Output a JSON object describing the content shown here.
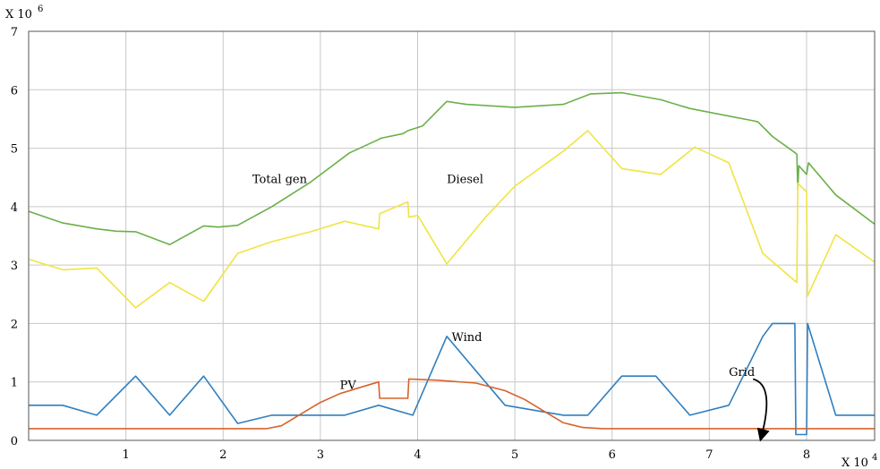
{
  "chart_data": {
    "type": "line",
    "title": "",
    "xlabel": "",
    "ylabel": "",
    "x_multiplier_label": "X 10",
    "x_multiplier_exp": "4",
    "y_multiplier_label": "X 10",
    "y_multiplier_exp": "6",
    "xlim": [
      0,
      8.7
    ],
    "ylim": [
      0,
      7
    ],
    "x_ticks": [
      "1",
      "2",
      "3",
      "4",
      "5",
      "6",
      "7",
      "8"
    ],
    "y_ticks": [
      "0",
      "1",
      "2",
      "3",
      "4",
      "5",
      "6",
      "7"
    ],
    "grid": true,
    "legend": "none",
    "annotations": [
      {
        "text": "Total gen",
        "x": 2.3,
        "y": 4.4
      },
      {
        "text": "Diesel",
        "x": 4.3,
        "y": 4.4
      },
      {
        "text": "Wind",
        "x": 4.35,
        "y": 1.7
      },
      {
        "text": "PV",
        "x": 3.2,
        "y": 0.88
      },
      {
        "text": "Grid",
        "x": 7.2,
        "y": 1.1
      }
    ],
    "series": [
      {
        "color": "#6ab04a",
        "points": [
          [
            0,
            3.92
          ],
          [
            0.35,
            3.72
          ],
          [
            0.7,
            3.62
          ],
          [
            0.9,
            3.58
          ],
          [
            1.1,
            3.57
          ],
          [
            1.45,
            3.35
          ],
          [
            1.8,
            3.67
          ],
          [
            1.95,
            3.65
          ],
          [
            2.15,
            3.68
          ],
          [
            2.5,
            4.0
          ],
          [
            2.9,
            4.42
          ],
          [
            3.3,
            4.92
          ],
          [
            3.6,
            5.15
          ],
          [
            3.62,
            5.17
          ],
          [
            3.85,
            5.25
          ],
          [
            3.9,
            5.3
          ],
          [
            4.05,
            5.38
          ],
          [
            4.3,
            5.8
          ],
          [
            4.5,
            5.75
          ],
          [
            5.0,
            5.7
          ],
          [
            5.5,
            5.75
          ],
          [
            5.78,
            5.93
          ],
          [
            6.1,
            5.95
          ],
          [
            6.5,
            5.83
          ],
          [
            6.8,
            5.68
          ],
          [
            7.2,
            5.55
          ],
          [
            7.45,
            5.47
          ],
          [
            7.5,
            5.45
          ],
          [
            7.65,
            5.2
          ],
          [
            7.9,
            4.9
          ],
          [
            7.91,
            4.3
          ],
          [
            7.92,
            4.7
          ],
          [
            8.0,
            4.55
          ],
          [
            8.02,
            4.75
          ],
          [
            8.3,
            4.2
          ],
          [
            8.7,
            3.7
          ]
        ]
      },
      {
        "color": "#f0e442",
        "points": [
          [
            0,
            3.1
          ],
          [
            0.35,
            2.92
          ],
          [
            0.7,
            2.95
          ],
          [
            1.1,
            2.27
          ],
          [
            1.45,
            2.7
          ],
          [
            1.8,
            2.38
          ],
          [
            2.15,
            3.2
          ],
          [
            2.5,
            3.4
          ],
          [
            2.9,
            3.57
          ],
          [
            3.25,
            3.75
          ],
          [
            3.6,
            3.62
          ],
          [
            3.61,
            3.88
          ],
          [
            3.9,
            4.08
          ],
          [
            3.91,
            3.82
          ],
          [
            4.0,
            3.85
          ],
          [
            4.3,
            3.02
          ],
          [
            4.7,
            3.82
          ],
          [
            5.0,
            4.35
          ],
          [
            5.5,
            4.95
          ],
          [
            5.75,
            5.3
          ],
          [
            6.1,
            4.65
          ],
          [
            6.5,
            4.55
          ],
          [
            6.85,
            5.02
          ],
          [
            7.2,
            4.75
          ],
          [
            7.55,
            3.2
          ],
          [
            7.9,
            2.7
          ],
          [
            7.91,
            4.4
          ],
          [
            8.0,
            4.25
          ],
          [
            8.01,
            2.47
          ],
          [
            8.3,
            3.52
          ],
          [
            8.7,
            3.05
          ]
        ]
      },
      {
        "color": "#2f7fc1",
        "points": [
          [
            0,
            0.6
          ],
          [
            0.35,
            0.6
          ],
          [
            0.7,
            0.43
          ],
          [
            1.1,
            1.1
          ],
          [
            1.45,
            0.43
          ],
          [
            1.8,
            1.1
          ],
          [
            2.15,
            0.29
          ],
          [
            2.5,
            0.43
          ],
          [
            3.25,
            0.43
          ],
          [
            3.6,
            0.6
          ],
          [
            3.95,
            0.43
          ],
          [
            4.3,
            1.78
          ],
          [
            4.9,
            0.6
          ],
          [
            5.5,
            0.43
          ],
          [
            5.75,
            0.43
          ],
          [
            6.1,
            1.1
          ],
          [
            6.45,
            1.1
          ],
          [
            6.8,
            0.43
          ],
          [
            7.2,
            0.6
          ],
          [
            7.55,
            1.78
          ],
          [
            7.65,
            2.0
          ],
          [
            7.88,
            2.0
          ],
          [
            7.89,
            0.1
          ],
          [
            8.0,
            0.1
          ],
          [
            8.01,
            2.0
          ],
          [
            8.3,
            0.43
          ],
          [
            8.7,
            0.43
          ]
        ]
      },
      {
        "color": "#d8622a",
        "points": [
          [
            0,
            0.2
          ],
          [
            2.45,
            0.2
          ],
          [
            2.6,
            0.25
          ],
          [
            2.8,
            0.45
          ],
          [
            3.0,
            0.65
          ],
          [
            3.2,
            0.8
          ],
          [
            3.4,
            0.9
          ],
          [
            3.6,
            1.0
          ],
          [
            3.61,
            0.72
          ],
          [
            3.9,
            0.72
          ],
          [
            3.91,
            1.05
          ],
          [
            4.2,
            1.03
          ],
          [
            4.6,
            0.98
          ],
          [
            4.9,
            0.85
          ],
          [
            5.1,
            0.7
          ],
          [
            5.3,
            0.5
          ],
          [
            5.5,
            0.3
          ],
          [
            5.7,
            0.22
          ],
          [
            5.9,
            0.2
          ],
          [
            8.7,
            0.2
          ]
        ]
      }
    ]
  }
}
